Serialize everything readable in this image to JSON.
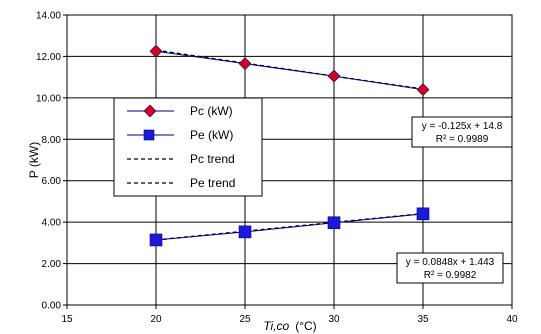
{
  "chart_data": {
    "type": "line",
    "title": "",
    "xlabel_italic": "Ti,co",
    "xlabel_unit": "(°C)",
    "ylabel": "P (kW)",
    "xlim": [
      15,
      40
    ],
    "ylim": [
      0,
      14
    ],
    "x_ticks": [
      "15",
      "20",
      "25",
      "30",
      "35",
      "40"
    ],
    "y_ticks": [
      "0.00",
      "2.00",
      "4.00",
      "6.00",
      "8.00",
      "10.00",
      "12.00",
      "14.00"
    ],
    "grid": true,
    "legend_placement": "center-left",
    "series": [
      {
        "name": "Pc (kW)",
        "marker": "diamond",
        "color": "#d9001b",
        "x": [
          20,
          25,
          30,
          35
        ],
        "values": [
          12.25,
          11.65,
          11.05,
          10.4
        ]
      },
      {
        "name": "Pe (kW)",
        "marker": "square",
        "color": "#1a1adb",
        "x": [
          20,
          25,
          30,
          35
        ],
        "values": [
          3.14,
          3.53,
          3.97,
          4.4
        ]
      }
    ],
    "trendlines": [
      {
        "name": "Pc  trend",
        "slope": -0.125,
        "intercept": 14.8,
        "x_range": [
          20,
          35
        ],
        "equation": "y = -0.125x + 14.8",
        "r2": "R² = 0.9989"
      },
      {
        "name": "Pe  trend",
        "slope": 0.0848,
        "intercept": 1.443,
        "x_range": [
          20,
          35
        ],
        "equation": "y = 0.0848x + 1.443",
        "r2": "R² = 0.9982"
      }
    ],
    "colors": {
      "line": "#000080",
      "grid": "#000000",
      "trend": "#000000"
    }
  }
}
